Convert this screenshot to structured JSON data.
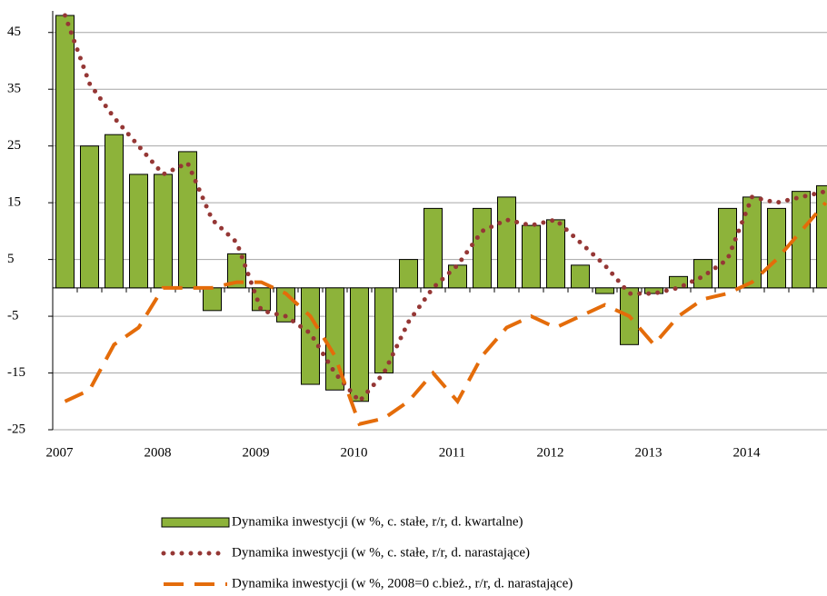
{
  "chart_data": {
    "type": "bar",
    "categories": [
      "2007",
      null,
      null,
      null,
      "2008",
      null,
      null,
      null,
      "2009",
      null,
      null,
      null,
      "2010",
      null,
      null,
      null,
      "2011",
      null,
      null,
      null,
      "2012",
      null,
      null,
      null,
      "2013",
      null,
      null,
      null,
      "2014",
      null,
      null,
      null
    ],
    "series": [
      {
        "name": "Dynamika inwestycji (w %, c. stałe, r/r, d. kwartalne)",
        "type": "bar",
        "color": "#8db33a",
        "values": [
          48,
          25,
          27,
          20,
          20,
          24,
          -4,
          6,
          -4,
          -6,
          -17,
          -18,
          -20,
          -15,
          5,
          14,
          4,
          14,
          16,
          11,
          12,
          4,
          -1,
          -10,
          -1,
          2,
          5,
          14,
          16,
          14,
          17,
          18
        ]
      },
      {
        "name": "Dynamika inwestycji (w %, c. stałe, r/r, d. narastające)",
        "type": "line",
        "dash": "dotted",
        "color": "#953735",
        "values": [
          48,
          36,
          30,
          25,
          20,
          22,
          12,
          8,
          -4,
          -5,
          -8,
          -15,
          -20,
          -15,
          -6,
          0,
          4,
          10,
          12,
          11,
          12,
          8,
          4,
          -1,
          -1,
          0,
          2,
          5,
          16,
          15,
          16,
          17
        ]
      },
      {
        "name": "Dynamika inwestycji (w %, 2008=0 c.bież., r/r, d. narastające)",
        "type": "line",
        "dash": "dashed",
        "color": "#e46c0a",
        "values": [
          -20,
          -18,
          -10,
          -7,
          0,
          0,
          0,
          1,
          1,
          -1,
          -5,
          -12,
          -24,
          -23,
          -20,
          -15,
          -20,
          -12,
          -7,
          -5,
          -7,
          -5,
          -3,
          -5,
          -10,
          -5,
          -2,
          -1,
          1,
          5,
          10,
          15
        ]
      }
    ],
    "ylim": [
      -25,
      48
    ],
    "yticks": [
      -25,
      -15,
      -5,
      5,
      15,
      25,
      35,
      45
    ],
    "grid": true
  }
}
